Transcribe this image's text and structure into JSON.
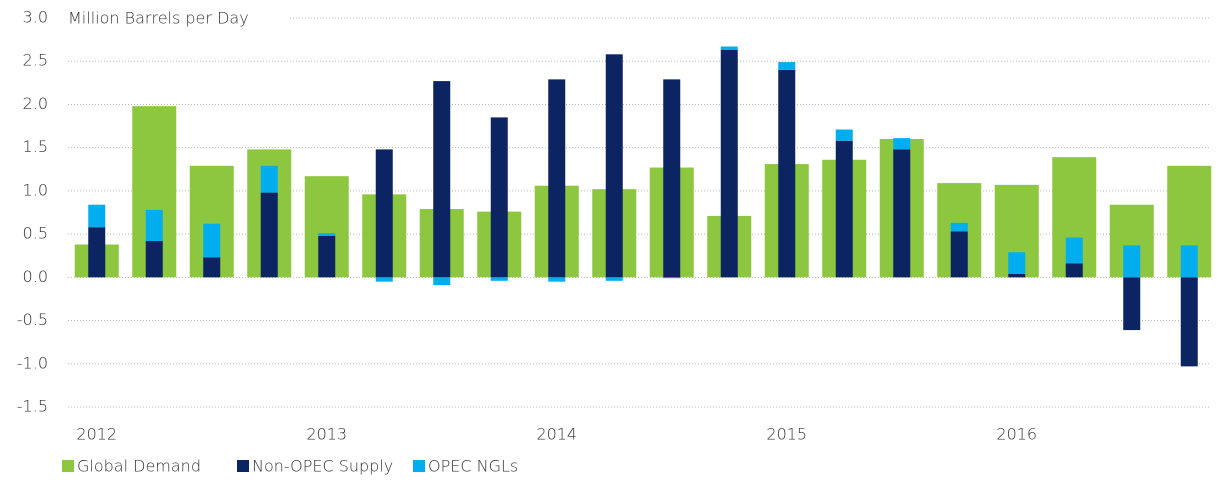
{
  "chart_data": {
    "type": "bar",
    "y_label": "Million Barrels per Day",
    "categories": [
      "2012",
      null,
      null,
      null,
      "2013",
      null,
      null,
      null,
      "2014",
      null,
      null,
      null,
      "2015",
      null,
      null,
      null,
      "2016",
      null,
      null,
      null
    ],
    "series": [
      {
        "name": "Global Demand",
        "color": "#8dc63f",
        "values": [
          0.38,
          1.98,
          1.29,
          1.48,
          1.17,
          0.96,
          0.79,
          0.76,
          1.06,
          1.02,
          1.27,
          0.71,
          1.31,
          1.36,
          1.6,
          1.09,
          1.07,
          1.39,
          0.84,
          1.29
        ]
      },
      {
        "name": "Non-OPEC Supply",
        "color": "#0c2461",
        "values": [
          0.58,
          0.42,
          0.23,
          0.98,
          0.48,
          1.48,
          2.27,
          1.85,
          2.29,
          2.58,
          2.29,
          2.63,
          2.4,
          1.58,
          1.48,
          0.53,
          0.04,
          0.16,
          -0.61,
          -1.03
        ]
      },
      {
        "name": "OPEC NGLs",
        "color": "#00aeef",
        "values": [
          0.26,
          0.36,
          0.39,
          0.31,
          0.03,
          -0.05,
          -0.09,
          -0.04,
          -0.05,
          -0.04,
          -0.01,
          0.04,
          0.09,
          0.13,
          0.13,
          0.1,
          0.25,
          0.3,
          0.37,
          0.37
        ]
      }
    ],
    "ylim": [
      -1.5,
      3.0
    ],
    "yticks": [
      {
        "value": 3.0,
        "label": "3.0"
      },
      2.5,
      {
        "value": 2.0,
        "label": "2.0"
      },
      1.5,
      {
        "value": 1.0,
        "label": "1.0"
      },
      0.5,
      {
        "value": 0,
        "label": "0.0"
      },
      -0.5,
      {
        "value": -1.0,
        "label": "-1.0"
      },
      -1.5
    ],
    "grid": true
  }
}
